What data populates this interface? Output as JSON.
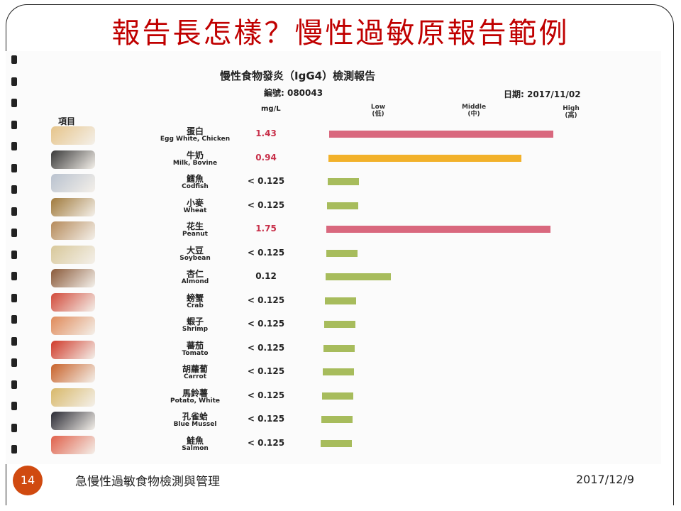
{
  "slide": {
    "title": "報告長怎樣？慢性過敏原報告範例",
    "number": "14",
    "footer_title": "急慢性過敏食物檢測與管理",
    "footer_date": "2017/12/9"
  },
  "report": {
    "title": "慢性食物發炎（IgG4）檢測報告",
    "number_label": "編號: 080043",
    "date_label": "日期: 2017/11/02",
    "item_header": "項目",
    "unit_header": "mg/L",
    "levels": [
      {
        "en": "Low",
        "zh": "(低)"
      },
      {
        "en": "Middle",
        "zh": "(中)"
      },
      {
        "en": "High",
        "zh": "(高)"
      }
    ],
    "colors": {
      "high": "#d9687e",
      "mid": "#f2b12a",
      "low": "#a7bc5c"
    },
    "items": [
      {
        "zh": "蛋白",
        "en": "Egg White, Chicken",
        "value": "1.43",
        "level": "high",
        "bar_fraction": 1.0,
        "icon": "egg-icon",
        "thumb": "#e6c48a"
      },
      {
        "zh": "牛奶",
        "en": "Milk, Bovine",
        "value": "0.94",
        "level": "mid",
        "bar_fraction": 0.86,
        "icon": "milk-carton-icon",
        "thumb": "#3a3a3a"
      },
      {
        "zh": "鱈魚",
        "en": "Codfish",
        "value": "< 0.125",
        "level": "low",
        "bar_fraction": 0.14,
        "icon": "fish-icon",
        "thumb": "#b9c2cf"
      },
      {
        "zh": "小麥",
        "en": "Wheat",
        "value": "< 0.125",
        "level": "low",
        "bar_fraction": 0.14,
        "icon": "wheat-icon",
        "thumb": "#a07a3c"
      },
      {
        "zh": "花生",
        "en": "Peanut",
        "value": "1.75",
        "level": "high",
        "bar_fraction": 1.0,
        "icon": "peanut-icon",
        "thumb": "#b58a5a"
      },
      {
        "zh": "大豆",
        "en": "Soybean",
        "value": "< 0.125",
        "level": "low",
        "bar_fraction": 0.14,
        "icon": "soybean-icon",
        "thumb": "#d8c89a"
      },
      {
        "zh": "杏仁",
        "en": "Almond",
        "value": "0.12",
        "level": "low",
        "bar_fraction": 0.29,
        "icon": "almond-icon",
        "thumb": "#8a5a3a"
      },
      {
        "zh": "螃蟹",
        "en": "Crab",
        "value": "< 0.125",
        "level": "low",
        "bar_fraction": 0.14,
        "icon": "crab-icon",
        "thumb": "#d24a3a"
      },
      {
        "zh": "蝦子",
        "en": "Shrimp",
        "value": "< 0.125",
        "level": "low",
        "bar_fraction": 0.14,
        "icon": "shrimp-icon",
        "thumb": "#e08a5a"
      },
      {
        "zh": "蕃茄",
        "en": "Tomato",
        "value": "< 0.125",
        "level": "low",
        "bar_fraction": 0.14,
        "icon": "tomato-icon",
        "thumb": "#d03a2a"
      },
      {
        "zh": "胡蘿蔔",
        "en": "Carrot",
        "value": "< 0.125",
        "level": "low",
        "bar_fraction": 0.14,
        "icon": "carrot-icon",
        "thumb": "#c8622a"
      },
      {
        "zh": "馬鈴薯",
        "en": "Potato, White",
        "value": "< 0.125",
        "level": "low",
        "bar_fraction": 0.14,
        "icon": "potato-icon",
        "thumb": "#d8b86a"
      },
      {
        "zh": "孔雀蛤",
        "en": "Blue Mussel",
        "value": "< 0.125",
        "level": "low",
        "bar_fraction": 0.14,
        "icon": "mussel-icon",
        "thumb": "#2a2a34"
      },
      {
        "zh": "鮭魚",
        "en": "Salmon",
        "value": "< 0.125",
        "level": "low",
        "bar_fraction": 0.14,
        "icon": "salmon-icon",
        "thumb": "#e0604a"
      }
    ]
  }
}
